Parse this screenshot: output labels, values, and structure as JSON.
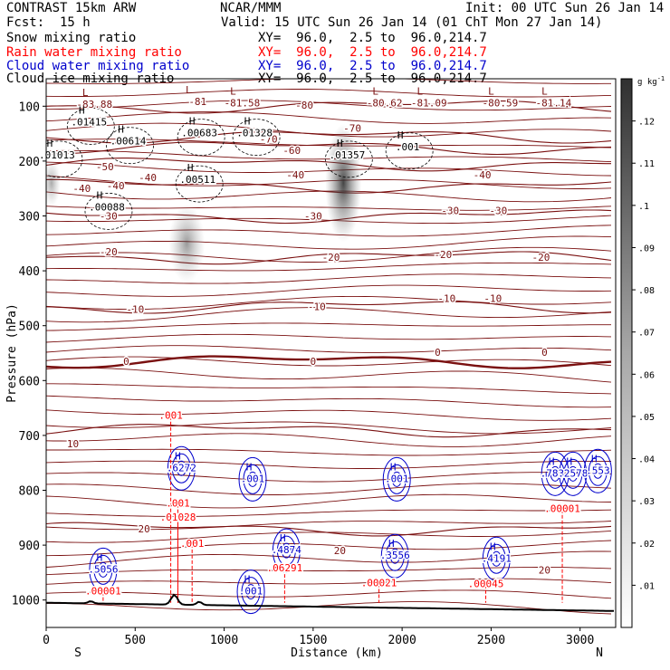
{
  "header": {
    "model": "CONTRAST 15km ARW",
    "source": "NCAR/MMM",
    "init": "Init: 00 UTC Sun 26 Jan 14",
    "fcst_label": "Fcst:",
    "fcst_value": "15 h",
    "valid": "Valid: 15 UTC Sun 26 Jan 14 (01 ChT Mon 27 Jan 14)"
  },
  "fields": [
    {
      "name": "Snow mixing ratio",
      "xy": "XY=  96.0,  2.5 to  96.0,214.7",
      "color": "#000000"
    },
    {
      "name": "Rain water mixing ratio",
      "xy": "XY=  96.0,  2.5 to  96.0,214.7",
      "color": "#ff0000"
    },
    {
      "name": "Cloud water mixing ratio",
      "xy": "XY=  96.0,  2.5 to  96.0,214.7",
      "color": "#0000cc"
    },
    {
      "name": "Cloud ice mixing ratio",
      "xy": "XY=  96.0,  2.5 to  96.0,214.7",
      "color": "#000000"
    }
  ],
  "chart_data": {
    "type": "heatmap",
    "xlabel": "Distance (km)",
    "ylabel": "Pressure (hPa)",
    "x_ticks": [
      0,
      500,
      1000,
      1500,
      2000,
      2500,
      3000
    ],
    "y_ticks": [
      100,
      200,
      300,
      400,
      500,
      600,
      700,
      800,
      900,
      1000
    ],
    "xlim": [
      0,
      3200
    ],
    "ylim": [
      1050,
      50
    ],
    "side_left": "S",
    "side_right": "N",
    "colorbar": {
      "unit": "g kg",
      "unit_exp": "-1",
      "ticks": [
        ".01",
        ".02",
        ".03",
        ".04",
        ".05",
        ".06",
        ".07",
        ".08",
        ".09",
        ".1",
        ".11",
        ".12"
      ],
      "range": [
        0,
        0.13
      ]
    },
    "temperature_isotherms": [
      {
        "t": -80,
        "p": 100
      },
      {
        "t": -70,
        "p": 155
      },
      {
        "t": -60,
        "p": 175
      },
      {
        "t": -50,
        "p": 205
      },
      {
        "t": -40,
        "p": 245
      },
      {
        "t": -30,
        "p": 300
      },
      {
        "t": -20,
        "p": 375
      },
      {
        "t": -10,
        "p": 465
      },
      {
        "t": 0,
        "p": 565
      },
      {
        "t": 10,
        "p": 690
      },
      {
        "t": 20,
        "p": 870
      }
    ],
    "temperature_labels": [
      {
        "x": 350,
        "p": 300,
        "text": "-30"
      },
      {
        "x": 200,
        "p": 250,
        "text": "-40"
      },
      {
        "x": 330,
        "p": 210,
        "text": "-50"
      },
      {
        "x": 390,
        "p": 245,
        "text": "-40"
      },
      {
        "x": 570,
        "p": 230,
        "text": "-40"
      },
      {
        "x": 1400,
        "p": 225,
        "text": "-40"
      },
      {
        "x": 2450,
        "p": 225,
        "text": "-40"
      },
      {
        "x": 1250,
        "p": 160,
        "text": "-70"
      },
      {
        "x": 1720,
        "p": 140,
        "text": "-70"
      },
      {
        "x": 1450,
        "p": 98,
        "text": "-80"
      },
      {
        "x": 1380,
        "p": 180,
        "text": "-60"
      },
      {
        "x": 1500,
        "p": 300,
        "text": "-30"
      },
      {
        "x": 2270,
        "p": 290,
        "text": "-30"
      },
      {
        "x": 2540,
        "p": 290,
        "text": "-30"
      },
      {
        "x": 350,
        "p": 365,
        "text": "-20"
      },
      {
        "x": 1600,
        "p": 375,
        "text": "-20"
      },
      {
        "x": 2230,
        "p": 370,
        "text": "-20"
      },
      {
        "x": 2780,
        "p": 375,
        "text": "-20"
      },
      {
        "x": 500,
        "p": 470,
        "text": "-10"
      },
      {
        "x": 1520,
        "p": 465,
        "text": "-10"
      },
      {
        "x": 2250,
        "p": 450,
        "text": "-10"
      },
      {
        "x": 2510,
        "p": 450,
        "text": "-10"
      },
      {
        "x": 450,
        "p": 565,
        "text": "0"
      },
      {
        "x": 1500,
        "p": 565,
        "text": "0"
      },
      {
        "x": 2200,
        "p": 548,
        "text": "0"
      },
      {
        "x": 2800,
        "p": 548,
        "text": "0"
      },
      {
        "x": 150,
        "p": 715,
        "text": "10"
      },
      {
        "x": 550,
        "p": 870,
        "text": "20"
      },
      {
        "x": 1650,
        "p": 910,
        "text": "20"
      },
      {
        "x": 2800,
        "p": 945,
        "text": "20"
      }
    ],
    "pressure_lows": [
      {
        "x": 220,
        "p": 75,
        "label": "-83.88"
      },
      {
        "x": 800,
        "p": 70,
        "label": "-81"
      },
      {
        "x": 1050,
        "p": 72,
        "label": "-81.58"
      },
      {
        "x": 1850,
        "p": 72,
        "label": "-80.62"
      },
      {
        "x": 2100,
        "p": 72,
        "label": "-81.09"
      },
      {
        "x": 2500,
        "p": 72,
        "label": "-80.59"
      },
      {
        "x": 2800,
        "p": 72,
        "label": "-81.14"
      }
    ],
    "ice_maxima": [
      {
        "x": 200,
        "p": 130,
        "label": ".01415"
      },
      {
        "x": 420,
        "p": 165,
        "label": ".00614"
      },
      {
        "x": 20,
        "p": 190,
        "label": ".01013"
      },
      {
        "x": 820,
        "p": 150,
        "label": ".00683"
      },
      {
        "x": 1130,
        "p": 150,
        "label": ".01328"
      },
      {
        "x": 810,
        "p": 235,
        "label": ".00511"
      },
      {
        "x": 300,
        "p": 285,
        "label": ".00088"
      },
      {
        "x": 1650,
        "p": 190,
        "label": ".01357"
      },
      {
        "x": 1990,
        "p": 175,
        "label": ".001"
      }
    ],
    "cloud_water_maxima": [
      {
        "x": 760,
        "p": 760,
        "label": ".6272"
      },
      {
        "x": 1350,
        "p": 910,
        "label": ".4874"
      },
      {
        "x": 1960,
        "p": 920,
        "label": ".3556"
      },
      {
        "x": 2530,
        "p": 925,
        "label": ".4191"
      },
      {
        "x": 320,
        "p": 945,
        "label": ".5056"
      },
      {
        "x": 2860,
        "p": 770,
        "label": ".7832"
      },
      {
        "x": 2960,
        "p": 770,
        "label": ".2578"
      },
      {
        "x": 3100,
        "p": 765,
        "label": ".553"
      },
      {
        "x": 1150,
        "p": 985,
        "label": ".001"
      },
      {
        "x": 1160,
        "p": 780,
        "label": ".001"
      },
      {
        "x": 1970,
        "p": 780,
        "label": ".001"
      }
    ],
    "rain_maxima": [
      {
        "x": 740,
        "p": 825,
        "label": ".001"
      },
      {
        "x": 740,
        "p": 850,
        "label": ".01028"
      },
      {
        "x": 820,
        "p": 898,
        "label": ".001"
      },
      {
        "x": 1340,
        "p": 943,
        "label": ".06291"
      },
      {
        "x": 1870,
        "p": 970,
        "label": ".00021"
      },
      {
        "x": 2470,
        "p": 972,
        "label": ".00045"
      },
      {
        "x": 320,
        "p": 985,
        "label": ".00001"
      },
      {
        "x": 2900,
        "p": 835,
        "label": ".00001"
      },
      {
        "x": 700,
        "p": 665,
        "label": ".001"
      }
    ],
    "shading": [
      {
        "x": 30,
        "p": 240,
        "w": 30,
        "h": 60,
        "v": 0.05
      },
      {
        "x": 790,
        "p": 350,
        "w": 60,
        "h": 100,
        "v": 0.06
      },
      {
        "x": 1670,
        "p": 240,
        "w": 60,
        "h": 150,
        "v": 0.11
      }
    ]
  }
}
